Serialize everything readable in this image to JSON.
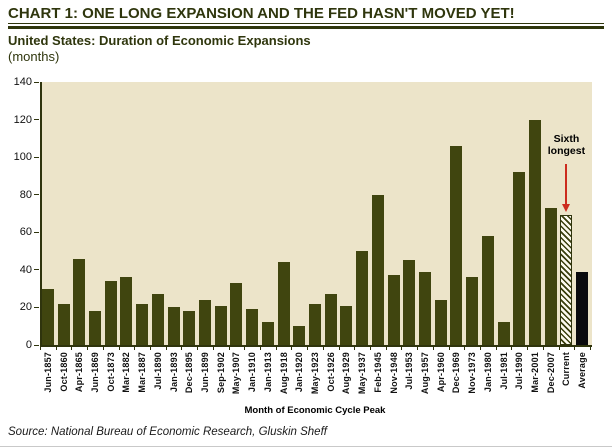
{
  "header": {
    "title": "CHART 1: ONE LONG EXPANSION AND THE FED HASN'T MOVED YET!"
  },
  "chart_data": {
    "type": "bar",
    "title": "United States: Duration of Economic Expansions",
    "units_label": "(months)",
    "xlabel": "Month of Economic Cycle Peak",
    "ylim": [
      0,
      140
    ],
    "yticks": [
      0,
      20,
      40,
      60,
      80,
      100,
      120,
      140
    ],
    "grid": false,
    "legend": false,
    "categories": [
      "Jun-1857",
      "Oct-1860",
      "Apr-1865",
      "Jun-1869",
      "Oct-1873",
      "Mar-1882",
      "Mar-1887",
      "Jul-1890",
      "Jan-1893",
      "Dec-1895",
      "Jun-1899",
      "Sep-1902",
      "May-1907",
      "Jan-1910",
      "Jan-1913",
      "Aug-1918",
      "Jan-1920",
      "May-1923",
      "Oct-1926",
      "Aug-1929",
      "May-1937",
      "Feb-1945",
      "Nov-1948",
      "Jul-1953",
      "Aug-1957",
      "Apr-1960",
      "Dec-1969",
      "Nov-1973",
      "Jan-1980",
      "Jul-1981",
      "Jul-1990",
      "Mar-2001",
      "Dec-2007",
      "Current",
      "Average"
    ],
    "values": [
      30,
      22,
      46,
      18,
      34,
      36,
      22,
      27,
      20,
      18,
      24,
      21,
      33,
      19,
      12,
      44,
      10,
      22,
      27,
      21,
      50,
      80,
      37,
      45,
      39,
      24,
      106,
      36,
      58,
      12,
      92,
      120,
      73,
      69,
      39
    ],
    "special_bars": {
      "Current": "hatched",
      "Average": "black"
    },
    "annotation": {
      "text": "Sixth longest",
      "target_category": "Current"
    },
    "colors": {
      "bar": "#40450f",
      "plot_background": "#ece4c9",
      "axis": "#2f340d",
      "hatch_background": "#fcfaef",
      "average_bar": "#0a0a0e",
      "arrow": "#cc2c1e",
      "title_text": "#2f360d"
    }
  },
  "footer": {
    "source": "Source: National Bureau of Economic Research, Gluskin Sheff"
  }
}
